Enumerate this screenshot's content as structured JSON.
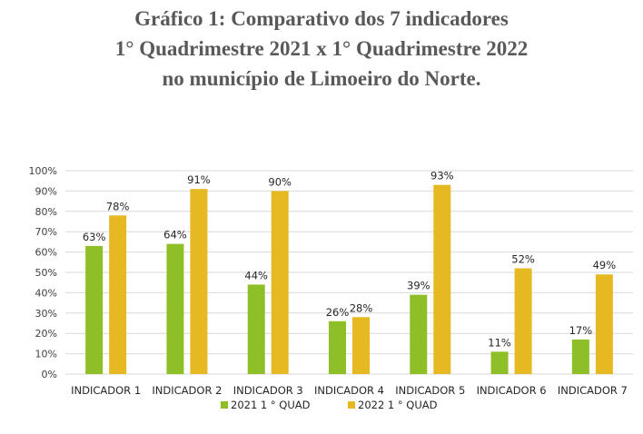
{
  "chart_data": {
    "type": "bar",
    "title": [
      "Gráfico 1: Comparativo dos 7 indicadores",
      "1° Quadrimestre 2021 x 1° Quadrimestre 2022",
      "no município de Limoeiro do Norte."
    ],
    "categories": [
      "INDICADOR 1",
      "INDICADOR 2",
      "INDICADOR 3",
      "INDICADOR 4",
      "INDICADOR 5",
      "INDICADOR 6",
      "INDICADOR 7"
    ],
    "series": [
      {
        "name": "2021 1 ° QUAD",
        "color": "#8fbf26",
        "values": [
          63,
          64,
          44,
          26,
          39,
          11,
          17
        ]
      },
      {
        "name": "2022 1 ° QUAD",
        "color": "#e6b822",
        "values": [
          78,
          91,
          90,
          28,
          93,
          52,
          49
        ]
      }
    ],
    "ylim": [
      0,
      100
    ],
    "yticks": [
      "0%",
      "10%",
      "20%",
      "30%",
      "40%",
      "50%",
      "60%",
      "70%",
      "80%",
      "90%",
      "100%"
    ],
    "grid": true,
    "legend": "bottom",
    "xlabel": "",
    "ylabel": ""
  }
}
